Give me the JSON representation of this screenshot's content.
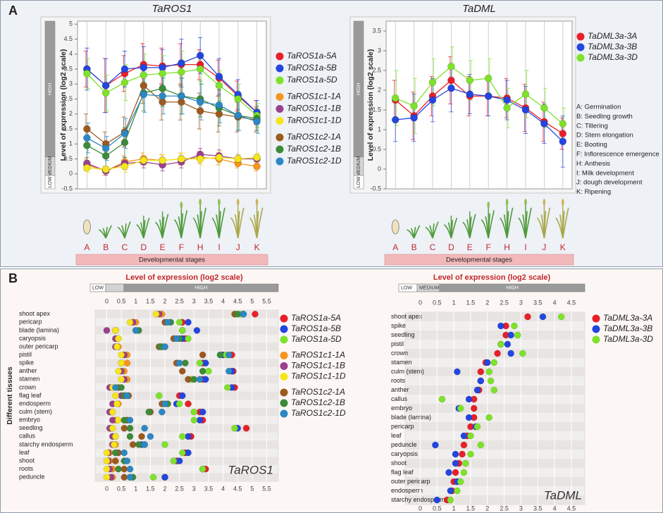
{
  "panels": [
    "A",
    "B"
  ],
  "chart_data": [
    {
      "type": "line",
      "title": "TaROS1",
      "y_label": "Level of expression (log2 scale)",
      "x_label": "Developmental stages",
      "level_labels": [
        "HIGH",
        "MEDIUM",
        "LOW"
      ],
      "categories": [
        "A",
        "B",
        "C",
        "D",
        "E",
        "F",
        "H",
        "I",
        "J",
        "K"
      ],
      "ylim": [
        -0.5,
        5.1
      ],
      "yticks": [
        -0.5,
        0,
        0.5,
        1,
        1.5,
        2,
        2.5,
        3,
        3.5,
        4,
        4.5,
        5
      ],
      "series": [
        {
          "name": "TaROS1a-5A",
          "color": "#e8202a",
          "values": [
            3.5,
            2.95,
            3.35,
            3.65,
            3.6,
            3.65,
            3.65,
            3.2,
            2.6,
            2.05
          ],
          "errors": [
            0.6,
            0.9,
            0.6,
            0.7,
            0.6,
            0.7,
            0.5,
            0.6,
            0.5,
            0.4
          ]
        },
        {
          "name": "TaROS1a-5B",
          "color": "#2346e0",
          "values": [
            3.5,
            2.95,
            3.5,
            3.55,
            3.55,
            3.7,
            3.95,
            3.25,
            2.65,
            2.05
          ],
          "errors": [
            0.7,
            0.9,
            0.6,
            0.7,
            0.6,
            0.8,
            0.6,
            0.6,
            0.5,
            0.4
          ]
        },
        {
          "name": "TaROS1a-5D",
          "color": "#7ee22a",
          "values": [
            3.35,
            2.7,
            3.05,
            3.3,
            3.35,
            3.4,
            3.5,
            2.95,
            2.5,
            1.95
          ],
          "errors": [
            0.5,
            0.6,
            0.6,
            0.7,
            0.6,
            0.7,
            0.5,
            0.5,
            0.5,
            0.4
          ]
        },
        {
          "name": "TaROS1c1-1A",
          "color": "#f7941d",
          "values": [
            0.3,
            0.1,
            0.4,
            0.5,
            0.45,
            0.5,
            0.55,
            0.5,
            0.35,
            0.25
          ],
          "errors": [
            0.2,
            0.15,
            0.2,
            0.2,
            0.2,
            0.2,
            0.2,
            0.2,
            0.15,
            0.15
          ]
        },
        {
          "name": "TaROS1c1-1B",
          "color": "#9b3f8f",
          "values": [
            0.35,
            0.1,
            0.35,
            0.4,
            0.3,
            0.4,
            0.65,
            0.6,
            0.5,
            0.5
          ],
          "errors": [
            0.2,
            0.15,
            0.2,
            0.2,
            0.2,
            0.2,
            0.2,
            0.2,
            0.15,
            0.15
          ]
        },
        {
          "name": "TaROS1c1-1D",
          "color": "#f5e51b",
          "values": [
            0.2,
            0.15,
            0.25,
            0.45,
            0.45,
            0.5,
            0.5,
            0.55,
            0.5,
            0.55
          ],
          "errors": [
            0.15,
            0.1,
            0.2,
            0.15,
            0.2,
            0.2,
            0.2,
            0.2,
            0.15,
            0.15
          ]
        },
        {
          "name": "TaROS1c2-1A",
          "color": "#9c5a1e",
          "values": [
            1.5,
            1.0,
            1.4,
            2.95,
            2.4,
            2.4,
            2.1,
            2.0,
            1.9,
            1.8
          ],
          "errors": [
            0.5,
            0.4,
            0.5,
            0.6,
            0.6,
            0.6,
            0.6,
            0.6,
            0.5,
            0.4
          ]
        },
        {
          "name": "TaROS1c2-1B",
          "color": "#3c8a3a",
          "values": [
            0.95,
            0.6,
            1.05,
            2.7,
            2.85,
            2.6,
            2.5,
            2.2,
            1.95,
            1.85
          ],
          "errors": [
            0.5,
            0.4,
            0.5,
            0.6,
            0.6,
            0.6,
            0.6,
            0.6,
            0.5,
            0.4
          ]
        },
        {
          "name": "TaROS1c2-1D",
          "color": "#2c88c4",
          "values": [
            1.2,
            0.85,
            1.35,
            2.65,
            2.6,
            2.6,
            2.4,
            2.3,
            1.95,
            1.75
          ],
          "errors": [
            0.5,
            0.4,
            0.5,
            0.6,
            0.6,
            0.6,
            0.6,
            0.6,
            0.5,
            0.4
          ]
        }
      ]
    },
    {
      "type": "line",
      "title": "TaDML",
      "y_label": "Level of expression (log2 scale)",
      "x_label": "Developmental stages",
      "level_labels": [
        "HIGH",
        "MEDIUM",
        "LOW"
      ],
      "categories": [
        "A",
        "B",
        "C",
        "D",
        "E",
        "F",
        "H",
        "I",
        "J",
        "K"
      ],
      "ylim": [
        -0.5,
        3.75
      ],
      "yticks": [
        -0.5,
        0,
        0.5,
        1,
        1.5,
        2,
        2.5,
        3,
        3.5
      ],
      "annotations": [
        "A: Germination",
        "B: Seedling growth",
        "C: Tillering",
        "D: Stem elongation",
        "E: Booting",
        "F: Inflorescence emergence",
        "H: Anthesis",
        "I: Milk development",
        "J: dough development",
        "K: Ripening"
      ],
      "series": [
        {
          "name": "TaDML3a-3A",
          "color": "#e8202a",
          "values": [
            1.75,
            1.35,
            1.85,
            2.25,
            1.85,
            1.85,
            1.8,
            1.55,
            1.2,
            0.9
          ],
          "errors": [
            0.5,
            0.6,
            0.5,
            0.6,
            0.5,
            0.5,
            0.5,
            0.6,
            0.5,
            0.4
          ]
        },
        {
          "name": "TaDML3a-3B",
          "color": "#2346e0",
          "values": [
            1.25,
            1.3,
            1.75,
            2.05,
            1.9,
            1.85,
            1.75,
            1.5,
            1.15,
            0.7
          ],
          "errors": [
            0.55,
            0.6,
            0.55,
            0.6,
            0.5,
            0.5,
            0.5,
            0.6,
            0.5,
            0.65
          ]
        },
        {
          "name": "TaDML3a-3D",
          "color": "#7ee22a",
          "values": [
            1.8,
            1.6,
            2.2,
            2.6,
            2.25,
            2.3,
            1.55,
            1.9,
            1.55,
            1.15
          ],
          "errors": [
            0.7,
            0.7,
            0.6,
            0.5,
            0.5,
            0.5,
            0.5,
            0.6,
            0.5,
            0.4
          ]
        }
      ]
    },
    {
      "type": "dot",
      "title": "Level of expression (log2 scale)",
      "y_label": "Different tissues",
      "corner_label": "TaROS1",
      "level_labels": [
        "LOW",
        "HIGH"
      ],
      "categories": [
        "shoot apex",
        "pericarp",
        "blade (lamina)",
        "caryopsis",
        "outer pericarp",
        "pistil",
        "spike",
        "anther",
        "stamen",
        "crown",
        "flag leaf",
        "endosperm",
        "culm (stem)",
        "embryo",
        "seedling",
        "callus",
        "starchy endosperm",
        "leaf",
        "shoot",
        "roots",
        "peduncle"
      ],
      "xlim": [
        -0.4,
        5.9
      ],
      "xticks": [
        0,
        0.5,
        1,
        1.5,
        2,
        2.5,
        3,
        3.5,
        4,
        4.5,
        5,
        5.5
      ],
      "series": [
        {
          "name": "TaROS1a-5A",
          "color": "#e8202a",
          "values": [
            5.1,
            2.6,
            2.6,
            2.7,
            2.0,
            4.3,
            3.3,
            4.35,
            3.3,
            4.4,
            2.5,
            2.8,
            3.2,
            3.3,
            4.8,
            2.9,
            1.3,
            2.7,
            2.4,
            3.4,
            2.0
          ]
        },
        {
          "name": "TaROS1a-5B",
          "color": "#2346e0",
          "values": [
            4.7,
            2.8,
            3.1,
            2.6,
            1.9,
            4.0,
            3.4,
            4.3,
            3.4,
            4.3,
            2.6,
            2.4,
            3.3,
            3.2,
            4.5,
            2.8,
            1.2,
            2.8,
            2.5,
            3.3,
            2.0
          ]
        },
        {
          "name": "TaROS1a-5D",
          "color": "#7ee22a",
          "values": [
            4.6,
            2.5,
            2.6,
            2.8,
            1.9,
            4.1,
            3.2,
            3.5,
            2.9,
            4.15,
            1.8,
            2.5,
            3.0,
            3.0,
            4.4,
            2.6,
            2.0,
            2.6,
            2.3,
            3.3,
            1.6
          ]
        },
        {
          "name": "TaROS1c1-1A",
          "color": "#f7941d",
          "values": [
            1.9,
            1.0,
            0.3,
            0.4,
            0.4,
            0.7,
            0.7,
            0.6,
            0.7,
            0.2,
            0.6,
            0.4,
            0.2,
            0.3,
            0.15,
            0.3,
            0.3,
            0.1,
            0.1,
            0.2,
            0.2
          ]
        },
        {
          "name": "TaROS1c1-1B",
          "color": "#9b3f8f",
          "values": [
            1.8,
            0.9,
            0.0,
            0.3,
            0.3,
            0.6,
            0.5,
            0.5,
            0.6,
            0.1,
            0.5,
            0.2,
            0.1,
            0.2,
            0.1,
            0.2,
            0.2,
            0.05,
            0.05,
            0.1,
            0.15
          ]
        },
        {
          "name": "TaROS1c1-1D",
          "color": "#f5e51b",
          "values": [
            1.7,
            0.8,
            0.3,
            0.4,
            0.35,
            0.5,
            0.5,
            0.4,
            0.5,
            0.2,
            0.3,
            0.35,
            0.2,
            0.4,
            0.2,
            0.3,
            0.25,
            0.0,
            0.0,
            0.0,
            0.0
          ]
        },
        {
          "name": "TaROS1c2-1A",
          "color": "#9c5a1e",
          "values": [
            4.4,
            2.0,
            1.0,
            2.3,
            1.8,
            3.3,
            2.4,
            2.6,
            2.8,
            0.4,
            0.75,
            1.9,
            1.5,
            0.7,
            0.6,
            1.2,
            0.9,
            0.4,
            0.3,
            0.6,
            0.6
          ]
        },
        {
          "name": "TaROS1c2-1B",
          "color": "#3c8a3a",
          "values": [
            4.5,
            2.2,
            1.1,
            2.5,
            1.85,
            3.9,
            2.7,
            3.3,
            3.0,
            0.5,
            0.6,
            2.1,
            1.45,
            0.6,
            0.8,
            0.8,
            1.1,
            0.3,
            0.6,
            0.4,
            0.9
          ]
        },
        {
          "name": "TaROS1c2-1D",
          "color": "#2c88c4",
          "values": [
            4.7,
            2.1,
            1.0,
            2.4,
            2.0,
            4.2,
            2.5,
            4.2,
            3.2,
            0.3,
            0.7,
            2.0,
            1.9,
            0.8,
            1.3,
            1.5,
            1.3,
            0.6,
            0.7,
            0.8,
            0.8
          ]
        }
      ]
    },
    {
      "type": "dot",
      "title": "Level of expression (log2 scale)",
      "corner_label": "TaDML",
      "level_labels": [
        "LOW",
        "MEDIUM",
        "HIGH"
      ],
      "categories": [
        "shoot apex",
        "spike",
        "seedling",
        "pistil",
        "crown",
        "stamen",
        "culm (stem)",
        "roots",
        "anther",
        "callus",
        "embryo",
        "blade (lamina)",
        "pericarp",
        "leaf",
        "peduncle",
        "caryopsis",
        "shoot",
        "flag leaf",
        "outer pericarp",
        "endosperm",
        "starchy endosperm"
      ],
      "xlim": [
        -0.45,
        4.9
      ],
      "xticks": [
        0,
        0.5,
        1,
        1.5,
        2,
        2.5,
        3,
        3.5,
        4,
        4.5
      ],
      "series": [
        {
          "name": "TaDML3a-3A",
          "color": "#e8202a",
          "values": [
            3.2,
            2.55,
            2.55,
            2.4,
            2.3,
            1.95,
            1.8,
            1.8,
            1.75,
            1.6,
            1.6,
            1.6,
            1.5,
            1.4,
            1.3,
            1.25,
            1.15,
            1.05,
            1.0,
            0.95,
            0.8
          ]
        },
        {
          "name": "TaDML3a-3B",
          "color": "#2346e0",
          "values": [
            3.65,
            2.4,
            2.7,
            2.6,
            2.7,
            2.0,
            1.1,
            1.8,
            1.7,
            1.45,
            1.15,
            1.45,
            1.65,
            1.3,
            0.45,
            1.05,
            1.05,
            0.85,
            1.1,
            0.9,
            0.5
          ]
        },
        {
          "name": "TaDML3a-3D",
          "color": "#7ee22a",
          "values": [
            4.2,
            2.8,
            2.9,
            2.4,
            3.05,
            2.2,
            2.05,
            2.1,
            2.2,
            0.65,
            1.2,
            2.05,
            1.7,
            1.5,
            1.8,
            1.5,
            1.35,
            1.3,
            1.2,
            1.1,
            0.9
          ]
        }
      ]
    }
  ]
}
